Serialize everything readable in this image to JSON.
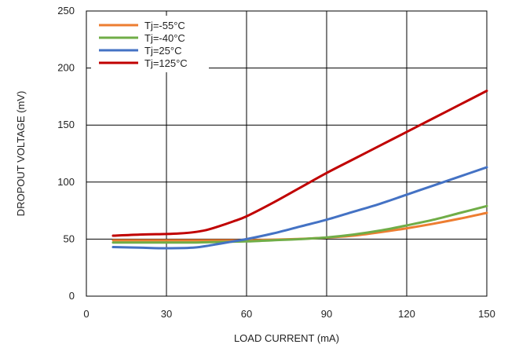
{
  "chart_data": {
    "type": "line",
    "title": "",
    "xlabel": "LOAD CURRENT (mA)",
    "ylabel": "DROPOUT VOLTAGE (mV)",
    "xlim": [
      0,
      150
    ],
    "ylim": [
      0,
      250
    ],
    "xticks": [
      0,
      30,
      60,
      90,
      120,
      150
    ],
    "yticks": [
      0,
      50,
      100,
      150,
      200,
      250
    ],
    "grid": true,
    "legend_position": "top-left",
    "series": [
      {
        "name": "Tj=-55°C",
        "color": "#ED7D31",
        "x": [
          10,
          20,
          30,
          40,
          50,
          60,
          70,
          80,
          90,
          100,
          110,
          120,
          130,
          140,
          150
        ],
        "y": [
          49,
          49,
          49,
          49,
          49,
          49,
          49.5,
          50.2,
          51.3,
          53,
          56,
          59.5,
          63.5,
          68,
          73
        ]
      },
      {
        "name": "Tj=-40°C",
        "color": "#70AD47",
        "x": [
          10,
          20,
          30,
          40,
          50,
          60,
          70,
          80,
          90,
          100,
          110,
          120,
          130,
          140,
          150
        ],
        "y": [
          47,
          47,
          47,
          47,
          47.5,
          48,
          49,
          50,
          51.5,
          54,
          57.5,
          62,
          67,
          73,
          79
        ]
      },
      {
        "name": "Tj=25°C",
        "color": "#4472C4",
        "x": [
          10,
          20,
          30,
          40,
          45,
          50,
          55,
          60,
          70,
          80,
          90,
          100,
          110,
          120,
          130,
          140,
          150
        ],
        "y": [
          43,
          42.5,
          42,
          42.5,
          44,
          46,
          48,
          50,
          55,
          61,
          67,
          74,
          81,
          89,
          97,
          105,
          113
        ]
      },
      {
        "name": "Tj=125°C",
        "color": "#C00000",
        "x": [
          10,
          20,
          30,
          35,
          40,
          45,
          50,
          55,
          60,
          70,
          80,
          90,
          100,
          110,
          120,
          130,
          140,
          150
        ],
        "y": [
          53,
          54,
          54.5,
          55,
          56,
          58,
          61.5,
          65.5,
          70,
          82,
          95,
          108,
          120,
          132,
          144,
          156,
          168,
          180
        ]
      }
    ]
  }
}
